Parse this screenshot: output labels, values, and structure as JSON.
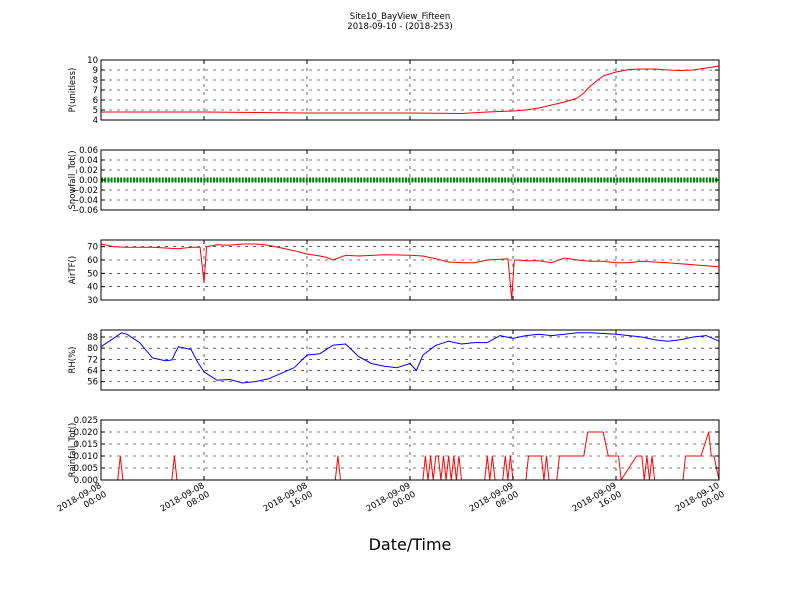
{
  "title": "Site10_BayView_Fifteen",
  "subtitle": "2018-09-10 - (2018-253)",
  "xlabel": "Date/Time",
  "x_ticks": [
    [
      "2018-09-08",
      "00:00"
    ],
    [
      "2018-09-08",
      "08:00"
    ],
    [
      "2018-09-08",
      "16:00"
    ],
    [
      "2018-09-09",
      "00:00"
    ],
    [
      "2018-09-09",
      "08:00"
    ],
    [
      "2018-09-09",
      "16:00"
    ],
    [
      "2018-09-10",
      "00:00"
    ]
  ],
  "chart_data": [
    {
      "type": "line",
      "ylabel": "P(unitless)",
      "ylim": [
        4,
        10
      ],
      "yticks": [
        "4",
        "5",
        "6",
        "7",
        "8",
        "9",
        "10"
      ],
      "grid": true,
      "series": [
        {
          "color": "#ff0000",
          "x": [
            0,
            4,
            8,
            12,
            16,
            20,
            24,
            28,
            30,
            32,
            33,
            34,
            35,
            36,
            37,
            37.5,
            38,
            39,
            40,
            41,
            42,
            43,
            44,
            45,
            46,
            47,
            48
          ],
          "y": [
            4.8,
            4.8,
            4.8,
            4.75,
            4.7,
            4.7,
            4.7,
            4.65,
            4.8,
            4.9,
            5.0,
            5.2,
            5.5,
            5.8,
            6.2,
            6.7,
            7.4,
            8.4,
            8.8,
            9.05,
            9.1,
            9.1,
            9.0,
            8.95,
            9.0,
            9.2,
            9.4
          ]
        }
      ]
    },
    {
      "type": "line",
      "ylabel": "Snowfall_Tot()",
      "ylim": [
        -0.06,
        0.06
      ],
      "yticks": [
        "−0.06",
        "−0.04",
        "−0.02",
        "0.00",
        "0.02",
        "0.04",
        "0.06"
      ],
      "grid": true,
      "series": [
        {
          "color": "#008000",
          "style": "thick-dotted",
          "x": [
            0,
            48
          ],
          "y": [
            0,
            0
          ]
        }
      ]
    },
    {
      "type": "line",
      "ylabel": "AirTF()",
      "ylim": [
        30,
        75
      ],
      "yticks": [
        "30",
        "40",
        "50",
        "60",
        "70"
      ],
      "grid": true,
      "series": [
        {
          "color": "#ff0000",
          "x": [
            0,
            1,
            2,
            4,
            5,
            6,
            7,
            7.7,
            8.0,
            8.2,
            9,
            10,
            11,
            12,
            13,
            14,
            15,
            16,
            17,
            17.5,
            18,
            19,
            20,
            22,
            24,
            25,
            26,
            27,
            28,
            29,
            30,
            31,
            31.6,
            31.9,
            32.1,
            32.4,
            33,
            34,
            35,
            36,
            37,
            38,
            39,
            40,
            41,
            42,
            44,
            46,
            48
          ],
          "y": [
            72,
            70,
            69.5,
            69.5,
            69,
            68.5,
            69.5,
            69.5,
            43,
            70,
            71.5,
            71,
            72,
            72,
            71,
            69,
            67,
            64.5,
            63,
            62,
            60,
            63.5,
            63,
            64,
            63.5,
            63,
            61,
            58.5,
            58,
            58,
            60,
            60.5,
            61,
            31,
            60,
            60,
            59.5,
            59.5,
            58,
            61.5,
            60,
            59,
            59,
            58,
            58,
            59,
            58,
            56.5,
            55
          ]
        }
      ]
    },
    {
      "type": "line",
      "ylabel": "RH(%)",
      "ylim": [
        50,
        93
      ],
      "yticks": [
        "56",
        "64",
        "72",
        "80",
        "88"
      ],
      "grid": true,
      "series": [
        {
          "color": "#0000ff",
          "x": [
            0,
            0.8,
            1.6,
            2,
            3,
            4,
            5,
            5.5,
            6,
            7,
            7.5,
            8,
            9,
            10,
            11,
            12,
            13,
            14,
            15,
            16,
            17,
            18,
            19,
            20,
            21,
            22,
            23,
            24,
            24.5,
            25,
            26,
            27,
            28,
            29,
            30,
            31,
            32,
            33,
            34,
            35,
            36,
            37,
            38,
            39,
            40,
            41,
            42,
            43,
            44,
            45,
            46,
            47,
            48
          ],
          "y": [
            81,
            86,
            91,
            90,
            84,
            73,
            71,
            71.5,
            81,
            79,
            70,
            63,
            57,
            57.5,
            55,
            56,
            58,
            62,
            66,
            75,
            76,
            82,
            83,
            74,
            69,
            67,
            66,
            69,
            64,
            75,
            82,
            85,
            83,
            84,
            84,
            89,
            87,
            89,
            90,
            89,
            90,
            91,
            91,
            90.5,
            90,
            89,
            88,
            86,
            85,
            86,
            88,
            89,
            85
          ]
        }
      ]
    },
    {
      "type": "line",
      "ylabel": "Rainfall_Tot()",
      "ylim": [
        0,
        0.025
      ],
      "yticks": [
        "0.000",
        "0.005",
        "0.010",
        "0.015",
        "0.020",
        "0.025"
      ],
      "grid": true,
      "series": [
        {
          "color": "#ff0000",
          "x": [
            0,
            1.3,
            1.5,
            1.7,
            5.5,
            5.7,
            5.9,
            18.2,
            18.4,
            18.6,
            25,
            25.2,
            25.4,
            25.6,
            25.8,
            26.0,
            26.2,
            26.4,
            26.6,
            26.8,
            27.0,
            27.2,
            27.4,
            27.6,
            27.8,
            28.0,
            28.2,
            29.8,
            30.0,
            30.2,
            30.4,
            30.6,
            31.2,
            31.4,
            31.6,
            31.8,
            32.0,
            33,
            33.2,
            33.4,
            34.2,
            34.4,
            34.6,
            34.8,
            35.4,
            35.6,
            35.8,
            36.0,
            37.5,
            37.8,
            39,
            39.4,
            40.2,
            40.4,
            41.6,
            41.8,
            42,
            42.2,
            42.4,
            42.6,
            42.8,
            43.0,
            45.2,
            45.4,
            46.2,
            46.6,
            47.2,
            47.4,
            47.6,
            48
          ],
          "y": [
            0,
            0,
            0.01,
            0,
            0,
            0.01,
            0,
            0,
            0.01,
            0,
            0,
            0.01,
            0,
            0.01,
            0,
            0.01,
            0.01,
            0,
            0.01,
            0,
            0.01,
            0,
            0.01,
            0,
            0.01,
            0,
            0,
            0,
            0.01,
            0,
            0.01,
            0,
            0,
            0.01,
            0,
            0.01,
            0,
            0,
            0.01,
            0.01,
            0.01,
            0,
            0.01,
            0,
            0,
            0.01,
            0.01,
            0.01,
            0.01,
            0.02,
            0.02,
            0.01,
            0.01,
            0,
            0.01,
            0.01,
            0.01,
            0,
            0.01,
            0,
            0.01,
            0,
            0,
            0.01,
            0.01,
            0.01,
            0.02,
            0.01,
            0.01,
            0
          ]
        }
      ]
    }
  ]
}
